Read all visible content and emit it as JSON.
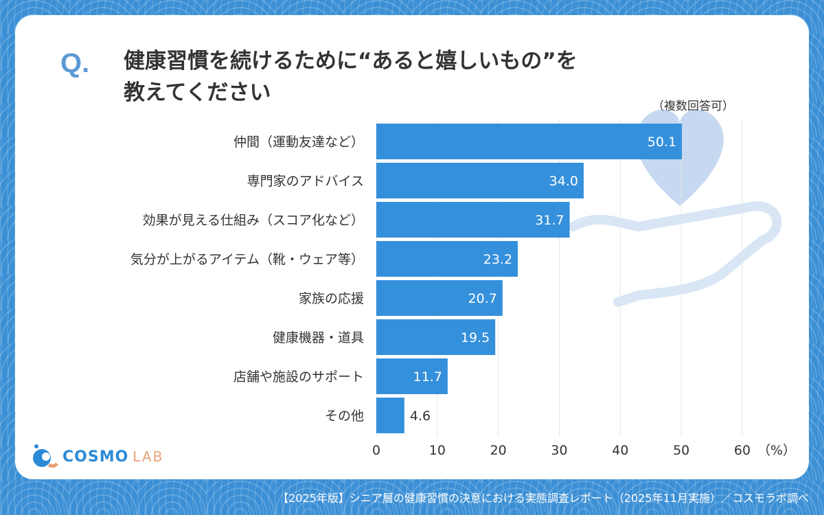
{
  "header": {
    "q_mark": "Q.",
    "title_line1": "健康習慣を続けるために“あると嬉しいもの”を",
    "title_line2": "教えてください",
    "note": "（複数回答可）"
  },
  "logo": {
    "text_main": "COSMO",
    "text_sub": "LAB"
  },
  "footer": "【2025年版】シニア層の健康習慣の決意における実態調査レポート（2025年11月実施）／コスモラボ調べ",
  "colors": {
    "bar": "#3590dc",
    "background": "#3b8fd5",
    "accent": "#5b9ad3"
  },
  "chart_data": {
    "type": "bar",
    "orientation": "horizontal",
    "categories": [
      "仲間（運動友達など）",
      "専門家のアドバイス",
      "効果が見える仕組み（スコア化など）",
      "気分が上がるアイテム（靴・ウェア等）",
      "家族の応援",
      "健康機器・道具",
      "店舗や施設のサポート",
      "その他"
    ],
    "values": [
      50.1,
      34.0,
      31.7,
      23.2,
      20.7,
      19.5,
      11.7,
      4.6
    ],
    "value_labels": [
      "50.1",
      "34.0",
      "31.7",
      "23.2",
      "20.7",
      "19.5",
      "11.7",
      "4.6"
    ],
    "xlim": [
      0,
      60
    ],
    "xticks": [
      "0",
      "10",
      "20",
      "30",
      "40",
      "50",
      "60"
    ],
    "xunit": "（%）",
    "grid": true
  }
}
